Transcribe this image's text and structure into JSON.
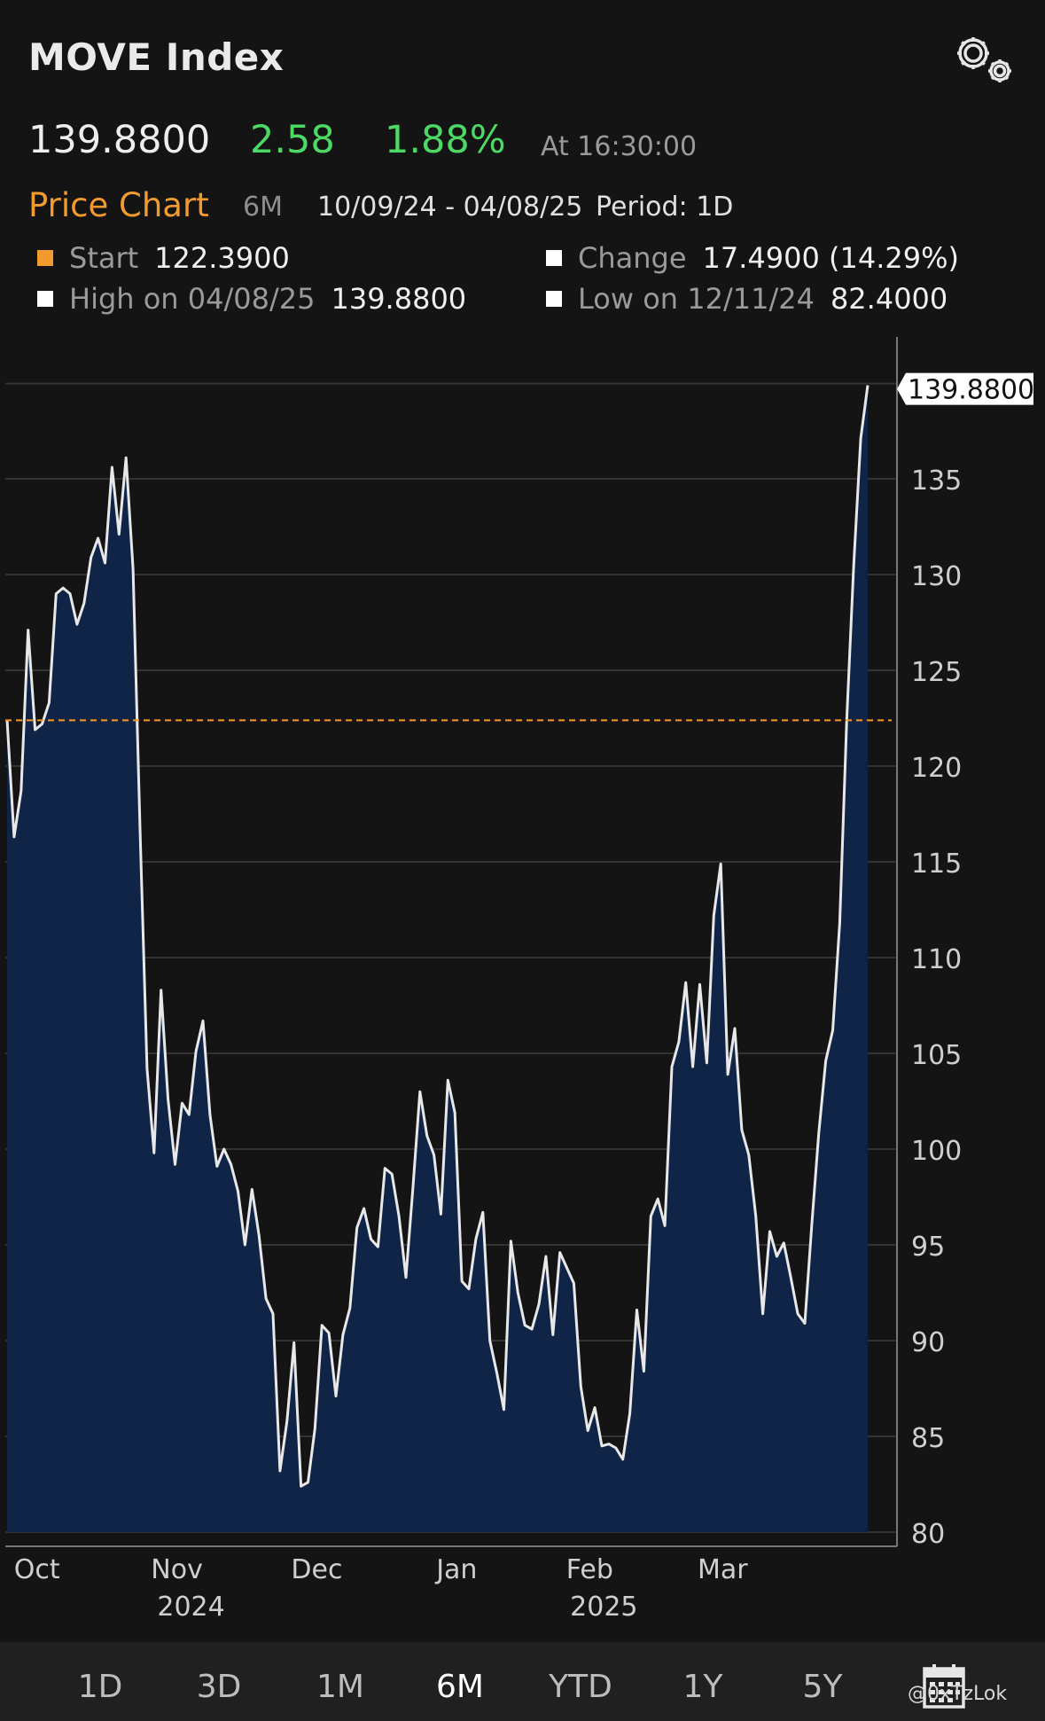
{
  "header": {
    "title": "MOVE Index",
    "price": "139.8800",
    "change": "2.58",
    "change_pct": "1.88%",
    "time": "At 16:30:00"
  },
  "price_chart": {
    "title": "Price Chart",
    "range": "6M",
    "dates": "10/09/24 - 04/08/25",
    "period": "Period: 1D"
  },
  "stats": {
    "start_label": "Start",
    "start_value": "122.3900",
    "change_label": "Change",
    "change_value": "17.4900 (14.29%)",
    "high_label": "High on 04/08/25",
    "high_value": "139.8800",
    "low_label": "Low on 12/11/24",
    "low_value": "82.4000"
  },
  "colors": {
    "accent": "#f29a2e",
    "positive": "#4cd964",
    "area_fill": "#0f2447",
    "line": "#e8e8e8"
  },
  "chart_data": {
    "type": "area",
    "title": "",
    "xlabel": "",
    "ylabel": "",
    "ylim": [
      80,
      140
    ],
    "yticks": [
      80,
      85,
      90,
      95,
      100,
      105,
      110,
      115,
      120,
      125,
      130,
      135
    ],
    "reference_line": 122.39,
    "last_value_label": "139.8800",
    "x_tick_labels": [
      {
        "month": "Oct",
        "year": "",
        "index": 3
      },
      {
        "month": "Nov",
        "year": "2024",
        "index": 23
      },
      {
        "month": "Dec",
        "year": "",
        "index": 43
      },
      {
        "month": "Jan",
        "year": "",
        "index": 63
      },
      {
        "month": "Feb",
        "year": "2025",
        "index": 82
      },
      {
        "month": "Mar",
        "year": "",
        "index": 101
      }
    ],
    "grid": true,
    "series": [
      {
        "values": [
          122.4,
          116.3,
          118.7,
          127.1,
          121.9,
          122.2,
          123.3,
          129.0,
          129.3,
          129.0,
          127.4,
          128.5,
          130.9,
          131.9,
          130.6,
          135.6,
          132.1,
          136.1,
          130.3,
          116.7,
          104.2,
          99.8,
          108.3,
          102.6,
          99.2,
          102.4,
          101.8,
          105.1,
          106.7,
          101.8,
          99.1,
          100.0,
          99.2,
          97.8,
          95.0,
          97.9,
          95.5,
          92.2,
          91.4,
          83.2,
          85.8,
          89.9,
          82.4,
          82.6,
          85.4,
          90.8,
          90.4,
          87.1,
          90.3,
          91.7,
          95.9,
          96.9,
          95.3,
          94.9,
          99.0,
          98.7,
          96.5,
          93.3,
          98.0,
          103.0,
          100.7,
          99.7,
          96.6,
          103.6,
          101.9,
          93.1,
          92.7,
          95.3,
          96.7,
          90.0,
          88.3,
          86.4,
          95.2,
          92.5,
          90.8,
          90.6,
          91.9,
          94.4,
          90.3,
          94.6,
          93.8,
          93.0,
          87.6,
          85.3,
          86.5,
          84.5,
          84.6,
          84.4,
          83.8,
          86.2,
          91.6,
          88.4,
          96.5,
          97.4,
          96.0,
          104.3,
          105.6,
          108.7,
          104.3,
          108.6,
          104.5,
          112.2,
          114.9,
          103.9,
          106.3,
          101.0,
          99.7,
          96.5,
          91.4,
          95.7,
          94.4,
          95.1,
          93.3,
          91.4,
          90.9,
          96.0,
          100.8,
          104.6,
          106.2,
          111.8,
          122.4,
          130.5,
          137.1,
          139.88
        ]
      }
    ]
  },
  "range_buttons": [
    "1D",
    "3D",
    "1M",
    "6M",
    "YTD",
    "1Y",
    "5Y"
  ],
  "active_range": "6M",
  "watermark": "@0xTzLok"
}
